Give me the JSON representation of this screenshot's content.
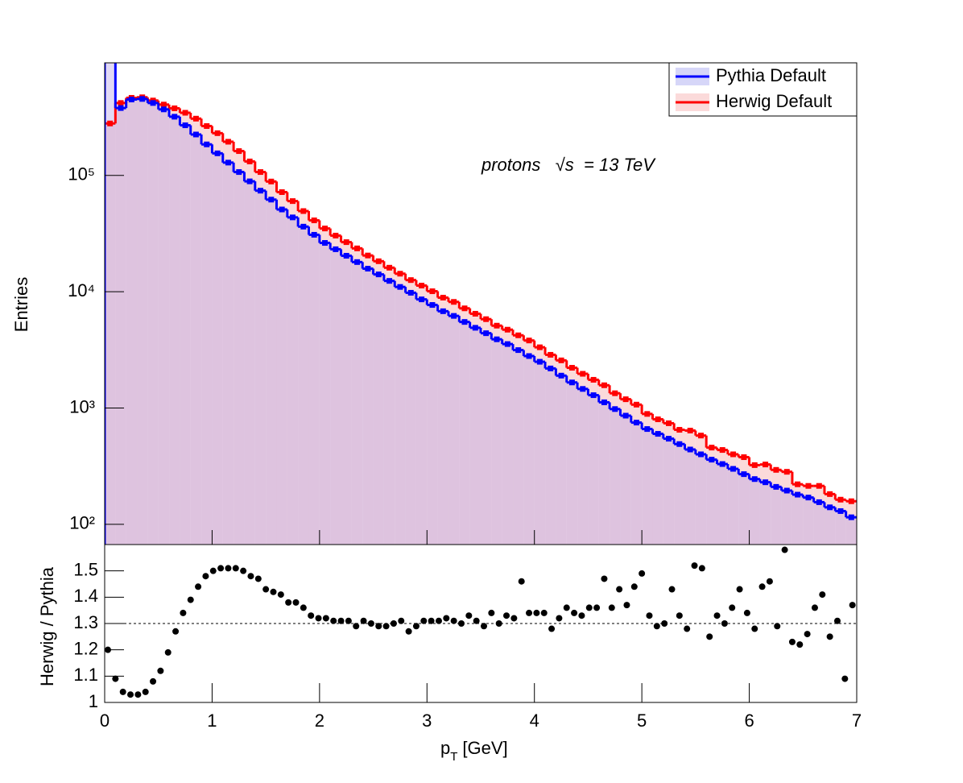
{
  "chart_data": [
    {
      "type": "histogram",
      "y_label": "Entries",
      "annotation": "protons   √s  = 13 TeV",
      "log_y": true,
      "legend": "top right",
      "xlim": [
        0,
        7
      ],
      "xticks": [
        0,
        1,
        2,
        3,
        4,
        5,
        6,
        7
      ],
      "ylim": [
        67,
        930000
      ],
      "yticks": [
        {
          "value": 100,
          "label": "10²"
        },
        {
          "value": 1000,
          "label": "10³"
        },
        {
          "value": 10000,
          "label": "10⁴"
        },
        {
          "value": 100000,
          "label": "10⁵"
        }
      ],
      "bins": [
        0,
        0.1,
        0.2,
        0.3,
        0.4,
        0.5,
        0.6,
        0.7,
        0.8,
        0.9,
        1,
        1.1,
        1.2,
        1.3,
        1.4,
        1.5,
        1.6,
        1.7,
        1.8,
        1.9,
        2,
        2.1,
        2.2,
        2.3,
        2.4,
        2.5,
        2.6,
        2.7,
        2.8,
        2.9,
        3,
        3.1,
        3.2,
        3.3,
        3.4,
        3.5,
        3.6,
        3.7,
        3.8,
        3.9,
        4,
        4.1,
        4.2,
        4.3,
        4.4,
        4.5,
        4.6,
        4.7,
        4.8,
        4.9,
        5,
        5.1,
        5.2,
        5.3,
        5.4,
        5.5,
        5.6,
        5.7,
        5.8,
        5.9,
        6,
        6.1,
        6.2,
        6.3,
        6.4,
        6.5,
        6.6,
        6.7,
        6.8,
        6.9,
        7
      ],
      "series": [
        {
          "name": "Pythia Default",
          "color": "#0000ff",
          "fill": "rgba(180,160,230,0.4)",
          "legend_fill": "#d6d6f8",
          "values": [
            1200000,
            380000,
            450000,
            455000,
            420000,
            370000,
            320000,
            270000,
            225000,
            185000,
            155000,
            129000,
            107000,
            89000,
            74000,
            62000,
            51000,
            43600,
            36300,
            30900,
            26300,
            23200,
            20400,
            18000,
            15800,
            14100,
            12400,
            11000,
            9800,
            8600,
            7700,
            6800,
            6200,
            5500,
            4900,
            4400,
            3900,
            3550,
            3150,
            2800,
            2500,
            2190,
            1900,
            1660,
            1460,
            1290,
            1120,
            980,
            860,
            750,
            660,
            600,
            545,
            490,
            440,
            400,
            360,
            330,
            300,
            270,
            245,
            230,
            210,
            195,
            180,
            170,
            155,
            140,
            130,
            115
          ]
        },
        {
          "name": "Herwig Default",
          "color": "#ff0000",
          "fill": "#fbdada",
          "legend_fill": "#fbdada",
          "values": [
            280000,
            420000,
            465000,
            470000,
            441000,
            407000,
            378000,
            346000,
            308000,
            266000,
            231000,
            195000,
            162000,
            132000,
            107000,
            88700,
            71900,
            60200,
            49400,
            41100,
            35000,
            30400,
            26700,
            23600,
            20500,
            18300,
            16100,
            14300,
            12600,
            11300,
            10100,
            8900,
            8180,
            7200,
            6470,
            5810,
            5110,
            4720,
            4220,
            3810,
            3330,
            2870,
            2570,
            2220,
            1970,
            1750,
            1570,
            1340,
            1190,
            1070,
            890,
            800,
            740,
            650,
            640,
            580,
            457,
            436,
            400,
            378,
            323,
            327,
            294,
            283,
            221,
            214,
            214,
            182,
            163,
            158
          ]
        }
      ]
    },
    {
      "type": "scatter",
      "y_label": "Herwig / Pythia",
      "x_label": "p",
      "x_label_subscript": "T",
      "x_label_unit": "[GeV]",
      "color": "#000000",
      "reference_line": 1.3,
      "xlim": [
        0,
        7
      ],
      "xticks": [
        0,
        1,
        2,
        3,
        4,
        5,
        6,
        7
      ],
      "ylim": [
        1,
        1.6
      ],
      "yticks": [
        1,
        1.1,
        1.2,
        1.3,
        1.4,
        1.5
      ],
      "x": [
        0.03,
        0.1,
        0.17,
        0.24,
        0.31,
        0.38,
        0.45,
        0.52,
        0.59,
        0.66,
        0.73,
        0.8,
        0.87,
        0.94,
        1.01,
        1.08,
        1.15,
        1.22,
        1.29,
        1.36,
        1.43,
        1.5,
        1.57,
        1.64,
        1.71,
        1.78,
        1.85,
        1.92,
        1.99,
        2.06,
        2.13,
        2.2,
        2.27,
        2.34,
        2.41,
        2.48,
        2.55,
        2.62,
        2.69,
        2.76,
        2.83,
        2.9,
        2.97,
        3.04,
        3.11,
        3.18,
        3.25,
        3.32,
        3.39,
        3.46,
        3.53,
        3.6,
        3.67,
        3.74,
        3.81,
        3.88,
        3.95,
        4.02,
        4.09,
        4.16,
        4.23,
        4.3,
        4.37,
        4.44,
        4.51,
        4.58,
        4.65,
        4.72,
        4.79,
        4.86,
        4.93,
        5,
        5.07,
        5.14,
        5.21,
        5.28,
        5.35,
        5.42,
        5.49,
        5.56,
        5.63,
        5.7,
        5.77,
        5.84,
        5.91,
        5.98,
        6.05,
        6.12,
        6.19,
        6.26,
        6.33,
        6.4,
        6.47,
        6.54,
        6.61,
        6.68,
        6.75,
        6.82,
        6.89,
        6.96
      ],
      "values": [
        1.2,
        1.09,
        1.04,
        1.03,
        1.03,
        1.04,
        1.08,
        1.12,
        1.19,
        1.27,
        1.34,
        1.39,
        1.44,
        1.48,
        1.5,
        1.51,
        1.51,
        1.51,
        1.5,
        1.48,
        1.47,
        1.43,
        1.42,
        1.41,
        1.38,
        1.38,
        1.36,
        1.33,
        1.32,
        1.32,
        1.31,
        1.31,
        1.31,
        1.29,
        1.31,
        1.3,
        1.29,
        1.29,
        1.3,
        1.31,
        1.27,
        1.29,
        1.31,
        1.31,
        1.31,
        1.32,
        1.31,
        1.3,
        1.33,
        1.31,
        1.29,
        1.34,
        1.3,
        1.33,
        1.32,
        1.46,
        1.34,
        1.34,
        1.34,
        1.28,
        1.32,
        1.36,
        1.34,
        1.33,
        1.36,
        1.36,
        1.47,
        1.36,
        1.43,
        1.37,
        1.44,
        1.49,
        1.33,
        1.29,
        1.3,
        1.43,
        1.33,
        1.28,
        1.52,
        1.51,
        1.25,
        1.33,
        1.3,
        1.36,
        1.43,
        1.34,
        1.28,
        1.44,
        1.46,
        1.29,
        1.58,
        1.23,
        1.22,
        1.26,
        1.36,
        1.41,
        1.25,
        1.31,
        1.09,
        1.37
      ]
    }
  ]
}
